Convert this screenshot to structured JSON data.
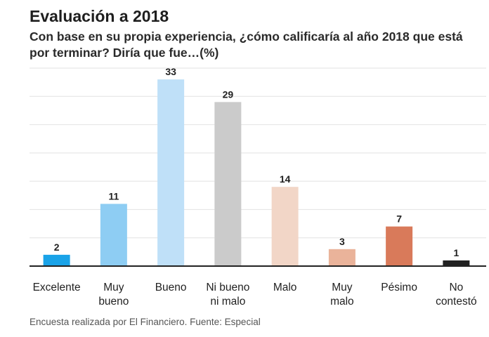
{
  "title": "Evaluación a 2018",
  "subtitle": "Con base en su propia experiencia, ¿cómo calificaría al año 2018 que está por terminar? Diría que fue…(%)",
  "footer": {
    "note": "Encuesta realizada por El Financiero.",
    "source": "Fuente: Especial"
  },
  "chart_data": {
    "type": "bar",
    "title": "Evaluación a 2018",
    "subtitle": "Con base en su propia experiencia, ¿cómo calificaría al año 2018 que está por terminar? Diría que fue…(%)",
    "xlabel": "",
    "ylabel": "",
    "ylim": [
      0,
      35
    ],
    "grid": true,
    "legend": "none",
    "categories": [
      [
        "Excelente"
      ],
      [
        "Muy",
        "bueno"
      ],
      [
        "Bueno"
      ],
      [
        "Ni bueno",
        "ni malo"
      ],
      [
        "Malo"
      ],
      [
        "Muy",
        "malo"
      ],
      [
        "Pésimo"
      ],
      [
        "No",
        "contestó"
      ]
    ],
    "values": [
      2,
      11,
      33,
      29,
      14,
      3,
      7,
      1
    ],
    "colors": [
      "#1aa3e8",
      "#8ecdf3",
      "#bfe0f8",
      "#cbcbcb",
      "#f2d6c7",
      "#eab39a",
      "#d97a5a",
      "#222222"
    ]
  }
}
